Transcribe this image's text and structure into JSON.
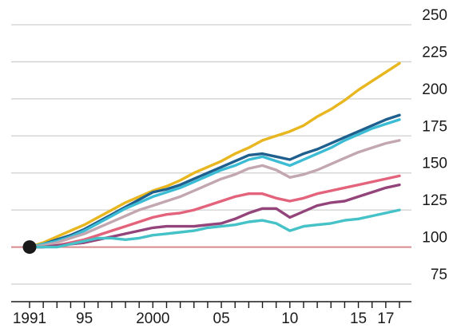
{
  "chart_data": {
    "type": "line",
    "title": "",
    "xlabel": "",
    "ylabel": "",
    "xlim": [
      1991,
      2018.5
    ],
    "ylim": [
      75,
      250
    ],
    "grid": true,
    "y_ticks": [
      {
        "value": 250,
        "label": "250"
      },
      {
        "value": 225,
        "label": "225"
      },
      {
        "value": 200,
        "label": "200"
      },
      {
        "value": 175,
        "label": "175"
      },
      {
        "value": 150,
        "label": "150"
      },
      {
        "value": 125,
        "label": "125"
      },
      {
        "value": 100,
        "label": "100"
      },
      {
        "value": 75,
        "label": "75"
      }
    ],
    "x_ticks": [
      {
        "value": 1991,
        "label": "1991"
      },
      {
        "value": 1995,
        "label": "95"
      },
      {
        "value": 2000,
        "label": "2000"
      },
      {
        "value": 2005,
        "label": "05"
      },
      {
        "value": 2010,
        "label": "10"
      },
      {
        "value": 2015,
        "label": "15"
      },
      {
        "value": 2017,
        "label": "17"
      }
    ],
    "x_minor_ticks": [
      1991,
      1992,
      1993,
      1994,
      1995,
      1996,
      1997,
      1998,
      1999,
      2000,
      2001,
      2002,
      2003,
      2004,
      2005,
      2006,
      2007,
      2008,
      2009,
      2010,
      2011,
      2012,
      2013,
      2014,
      2015,
      2016,
      2017,
      2018
    ],
    "baseline": {
      "value": 100,
      "color": "#d98a8e"
    },
    "start_marker": {
      "x": 1991,
      "y": 100,
      "color": "#1a1a1a"
    },
    "colors": {
      "grid": "#cfcfcf",
      "axis": "#1a1a1a"
    },
    "series": [
      {
        "color": "#e8b61e",
        "x": [
          1991,
          1992,
          1993,
          1994,
          1995,
          1996,
          1997,
          1998,
          1999,
          2000,
          2001,
          2002,
          2003,
          2004,
          2005,
          2006,
          2007,
          2008,
          2009,
          2010,
          2011,
          2012,
          2013,
          2014,
          2015,
          2016,
          2017,
          2018
        ],
        "y": [
          100,
          103,
          107,
          111,
          115,
          120,
          125,
          130,
          134,
          138,
          141,
          145,
          150,
          154,
          158,
          163,
          167,
          172,
          175,
          178,
          182,
          188,
          193,
          199,
          206,
          212,
          218,
          224
        ]
      },
      {
        "color": "#1f5f8e",
        "x": [
          1991,
          1992,
          1993,
          1994,
          1995,
          1996,
          1997,
          1998,
          1999,
          2000,
          2001,
          2002,
          2003,
          2004,
          2005,
          2006,
          2007,
          2008,
          2009,
          2010,
          2011,
          2012,
          2013,
          2014,
          2015,
          2016,
          2017,
          2018
        ],
        "y": [
          100,
          102,
          105,
          108,
          112,
          117,
          122,
          127,
          132,
          137,
          139,
          142,
          146,
          150,
          154,
          158,
          162,
          163,
          161,
          159,
          163,
          166,
          170,
          174,
          178,
          182,
          186,
          189
        ]
      },
      {
        "color": "#3cbcd4",
        "x": [
          1991,
          1992,
          1993,
          1994,
          1995,
          1996,
          1997,
          1998,
          1999,
          2000,
          2001,
          2002,
          2003,
          2004,
          2005,
          2006,
          2007,
          2008,
          2009,
          2010,
          2011,
          2012,
          2013,
          2014,
          2015,
          2016,
          2017,
          2018
        ],
        "y": [
          100,
          102,
          104,
          107,
          111,
          116,
          121,
          126,
          130,
          134,
          137,
          140,
          144,
          148,
          152,
          155,
          159,
          161,
          158,
          155,
          159,
          163,
          167,
          172,
          176,
          180,
          183,
          186
        ]
      },
      {
        "color": "#c2a6b0",
        "x": [
          1991,
          1992,
          1993,
          1994,
          1995,
          1996,
          1997,
          1998,
          1999,
          2000,
          2001,
          2002,
          2003,
          2004,
          2005,
          2006,
          2007,
          2008,
          2009,
          2010,
          2011,
          2012,
          2013,
          2014,
          2015,
          2016,
          2017,
          2018
        ],
        "y": [
          100,
          101,
          103,
          106,
          109,
          113,
          117,
          121,
          125,
          128,
          131,
          134,
          138,
          142,
          146,
          149,
          153,
          155,
          152,
          147,
          149,
          152,
          156,
          160,
          164,
          167,
          170,
          172
        ]
      },
      {
        "color": "#e2637b",
        "x": [
          1991,
          1992,
          1993,
          1994,
          1995,
          1996,
          1997,
          1998,
          1999,
          2000,
          2001,
          2002,
          2003,
          2004,
          2005,
          2006,
          2007,
          2008,
          2009,
          2010,
          2011,
          2012,
          2013,
          2014,
          2015,
          2016,
          2017,
          2018
        ],
        "y": [
          100,
          100,
          101,
          103,
          105,
          108,
          111,
          114,
          117,
          120,
          122,
          123,
          125,
          128,
          131,
          134,
          136,
          136,
          133,
          131,
          133,
          136,
          138,
          140,
          142,
          144,
          146,
          148
        ]
      },
      {
        "color": "#93447a",
        "x": [
          1991,
          1992,
          1993,
          1994,
          1995,
          1996,
          1997,
          1998,
          1999,
          2000,
          2001,
          2002,
          2003,
          2004,
          2005,
          2006,
          2007,
          2008,
          2009,
          2010,
          2011,
          2012,
          2013,
          2014,
          2015,
          2016,
          2017,
          2018
        ],
        "y": [
          100,
          100,
          101,
          102,
          103,
          105,
          107,
          109,
          111,
          113,
          114,
          114,
          114,
          115,
          116,
          119,
          123,
          126,
          126,
          120,
          124,
          128,
          130,
          131,
          134,
          137,
          140,
          142
        ]
      },
      {
        "color": "#45c2c8",
        "x": [
          1991,
          1992,
          1993,
          1994,
          1995,
          1996,
          1997,
          1998,
          1999,
          2000,
          2001,
          2002,
          2003,
          2004,
          2005,
          2006,
          2007,
          2008,
          2009,
          2010,
          2011,
          2012,
          2013,
          2014,
          2015,
          2016,
          2017,
          2018
        ],
        "y": [
          100,
          100,
          100,
          102,
          104,
          106,
          106,
          105,
          106,
          108,
          109,
          110,
          111,
          113,
          114,
          115,
          117,
          118,
          116,
          111,
          114,
          115,
          116,
          118,
          119,
          121,
          123,
          125
        ]
      }
    ]
  }
}
